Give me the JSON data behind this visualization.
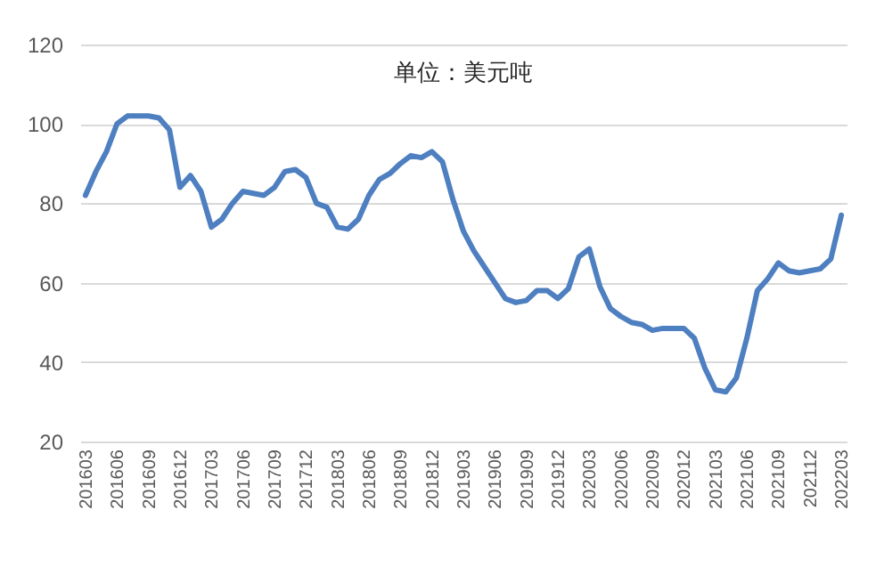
{
  "chart_data": {
    "type": "line",
    "categories": [
      "201603",
      null,
      null,
      "201606",
      null,
      null,
      "201609",
      null,
      null,
      "201612",
      null,
      null,
      "201703",
      null,
      null,
      "201706",
      null,
      null,
      "201709",
      null,
      null,
      "201712",
      null,
      null,
      "201803",
      null,
      null,
      "201806",
      null,
      null,
      "201809",
      null,
      null,
      "201812",
      null,
      null,
      "201903",
      null,
      null,
      "201906",
      null,
      null,
      "201909",
      null,
      null,
      "201912",
      null,
      null,
      "202003",
      null,
      null,
      "202006",
      null,
      null,
      "202009",
      null,
      null,
      "202012",
      null,
      null,
      "202103",
      null,
      null,
      "202106",
      null,
      null,
      "202109",
      null,
      null,
      "202112",
      null,
      null,
      "202203"
    ],
    "series": [
      {
        "color": "#4e7fc0",
        "values": [
          82,
          88,
          93,
          100,
          102,
          102,
          102,
          101.5,
          98.5,
          84,
          87,
          83,
          74,
          76,
          80,
          83,
          82.5,
          82,
          84,
          88,
          88.5,
          86.5,
          80,
          79,
          74,
          73.5,
          76,
          82,
          86,
          87.5,
          90,
          92,
          91.5,
          93,
          90.5,
          81,
          73,
          68,
          64,
          60,
          56,
          55,
          55.5,
          58,
          58,
          56,
          58.5,
          66.5,
          68.5,
          59,
          53.5,
          51.5,
          50,
          49.5,
          48,
          48.5,
          48.5,
          48.5,
          46,
          38.5,
          33,
          32.5,
          36,
          46,
          58,
          61,
          65,
          63,
          62.5,
          63,
          63.5,
          66,
          77
        ]
      }
    ],
    "annotations": [
      "单位：美元吨"
    ],
    "ylim": [
      20,
      120
    ],
    "yticks": [
      20,
      40,
      60,
      80,
      100,
      120
    ],
    "grid": "y",
    "marker": "none",
    "line_style": "solid"
  }
}
